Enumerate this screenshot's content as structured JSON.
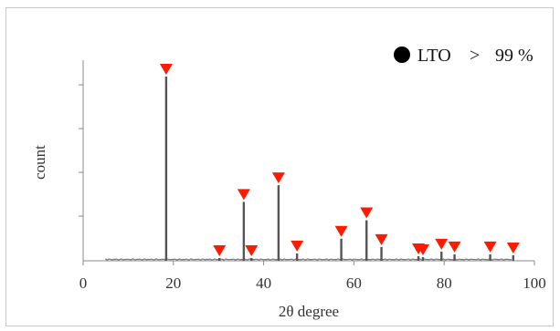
{
  "chart_data": {
    "type": "line",
    "title": "",
    "xlabel": "2θ degree",
    "ylabel": "count",
    "xlim": [
      0,
      100
    ],
    "x_ticks": [
      0,
      20,
      40,
      60,
      80,
      100
    ],
    "ylim": [
      0,
      100
    ],
    "y_tick_labels_shown": false,
    "grid": false,
    "legend": {
      "position": "top-right",
      "marker": "filled-circle",
      "label": "LTO",
      "operator": ">",
      "value": "99 %"
    },
    "series": [
      {
        "peaks": [
          {
            "x": 18.4,
            "y": 100
          },
          {
            "x": 30.2,
            "y": 1.5
          },
          {
            "x": 35.6,
            "y": 32
          },
          {
            "x": 37.3,
            "y": 1.5
          },
          {
            "x": 43.3,
            "y": 41
          },
          {
            "x": 47.4,
            "y": 4
          },
          {
            "x": 57.2,
            "y": 12
          },
          {
            "x": 62.8,
            "y": 22
          },
          {
            "x": 66.1,
            "y": 7.5
          },
          {
            "x": 74.3,
            "y": 2.5
          },
          {
            "x": 75.3,
            "y": 2
          },
          {
            "x": 79.4,
            "y": 5
          },
          {
            "x": 82.3,
            "y": 3.5
          },
          {
            "x": 90.2,
            "y": 3.5
          },
          {
            "x": 95.3,
            "y": 3
          }
        ]
      }
    ],
    "marker_color": "#ff1a00",
    "line_color": "#555555"
  }
}
